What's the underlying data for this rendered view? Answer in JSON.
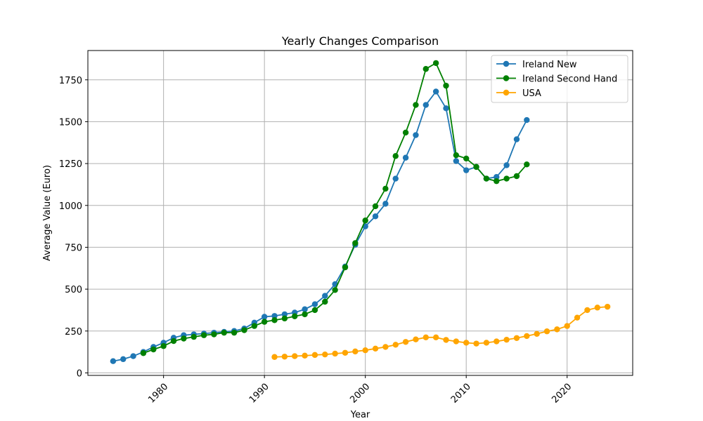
{
  "chart_data": {
    "type": "line",
    "title": "Yearly Changes Comparison",
    "xlabel": "Year",
    "ylabel": "Average Value (Euro)",
    "xlim": [
      1972.5,
      2026.5
    ],
    "ylim": [
      -15,
      1925
    ],
    "x_ticks": [
      1980,
      1990,
      2000,
      2010,
      2020
    ],
    "y_ticks": [
      0,
      250,
      500,
      750,
      1000,
      1250,
      1500,
      1750
    ],
    "grid": true,
    "legend_position": "top-right",
    "series": [
      {
        "name": "Ireland New",
        "color": "#1f77b4",
        "marker": "circle",
        "x": [
          1975,
          1976,
          1977,
          1978,
          1979,
          1980,
          1981,
          1982,
          1983,
          1984,
          1985,
          1986,
          1987,
          1988,
          1989,
          1990,
          1991,
          1992,
          1993,
          1994,
          1995,
          1996,
          1997,
          1998,
          1999,
          2000,
          2001,
          2002,
          2003,
          2004,
          2005,
          2006,
          2007,
          2008,
          2009,
          2010,
          2011,
          2012,
          2013,
          2014,
          2015,
          2016
        ],
        "values": [
          70,
          82,
          100,
          125,
          155,
          180,
          210,
          225,
          230,
          235,
          240,
          245,
          250,
          265,
          300,
          335,
          340,
          350,
          360,
          380,
          410,
          460,
          530,
          635,
          765,
          875,
          935,
          1010,
          1160,
          1285,
          1420,
          1600,
          1680,
          1580,
          1265,
          1210,
          1230,
          1160,
          1170,
          1240,
          1395,
          1510
        ]
      },
      {
        "name": "Ireland Second Hand",
        "color": "#008000",
        "marker": "circle",
        "x": [
          1978,
          1979,
          1980,
          1981,
          1982,
          1983,
          1984,
          1985,
          1986,
          1987,
          1988,
          1989,
          1990,
          1991,
          1992,
          1993,
          1994,
          1995,
          1996,
          1997,
          1998,
          1999,
          2000,
          2001,
          2002,
          2003,
          2004,
          2005,
          2006,
          2007,
          2008,
          2009,
          2010,
          2011,
          2012,
          2013,
          2014,
          2015,
          2016
        ],
        "values": [
          118,
          140,
          160,
          190,
          205,
          215,
          225,
          230,
          240,
          240,
          255,
          280,
          305,
          315,
          325,
          338,
          350,
          375,
          425,
          495,
          630,
          775,
          910,
          995,
          1100,
          1295,
          1435,
          1600,
          1815,
          1850,
          1715,
          1300,
          1280,
          1230,
          1160,
          1145,
          1160,
          1175,
          1245
        ]
      },
      {
        "name": "USA",
        "color": "#ffa500",
        "marker": "circle",
        "x": [
          1991,
          1992,
          1993,
          1994,
          1995,
          1996,
          1997,
          1998,
          1999,
          2000,
          2001,
          2002,
          2003,
          2004,
          2005,
          2006,
          2007,
          2008,
          2009,
          2010,
          2011,
          2012,
          2013,
          2014,
          2015,
          2016,
          2017,
          2018,
          2019,
          2020,
          2021,
          2022,
          2023,
          2024
        ],
        "values": [
          95,
          97,
          100,
          103,
          107,
          110,
          115,
          120,
          128,
          135,
          145,
          155,
          168,
          185,
          200,
          212,
          212,
          197,
          188,
          180,
          175,
          180,
          188,
          198,
          208,
          220,
          233,
          248,
          260,
          280,
          330,
          375,
          390,
          395
        ]
      }
    ]
  }
}
